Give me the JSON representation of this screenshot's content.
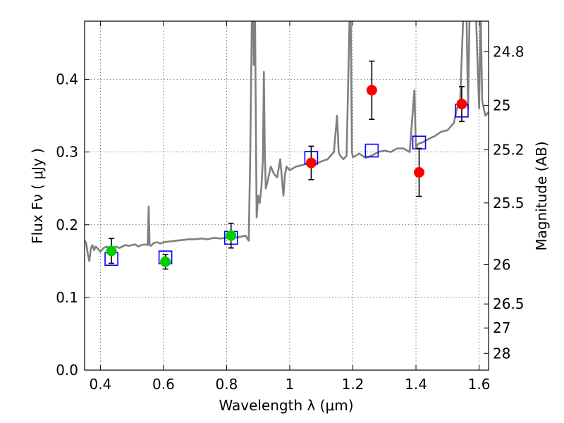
{
  "chart_data": {
    "type": "scatter",
    "xlabel": "Wavelength  λ (μm)",
    "ylabel": "Flux  Fν  ( μJy )",
    "y2label": "Magnitude (AB)",
    "xlim": [
      0.35,
      1.63
    ],
    "ylim": [
      0.0,
      0.48
    ],
    "grid": true,
    "x_ticks": [
      0.4,
      0.6,
      0.8,
      1.0,
      1.2,
      1.4,
      1.6
    ],
    "x_tick_labels": [
      "0.4",
      "0.6",
      "0.8",
      "1",
      "1.2",
      "1.4",
      "1.6"
    ],
    "y_ticks": [
      0.0,
      0.1,
      0.2,
      0.3,
      0.4
    ],
    "y_tick_labels": [
      "0.0",
      "0.1",
      "0.2",
      "0.3",
      "0.4"
    ],
    "y2_ticks": [
      {
        "label": "24.8",
        "flux": 0.438
      },
      {
        "label": "25",
        "flux": 0.364
      },
      {
        "label": "25.2",
        "flux": 0.303
      },
      {
        "label": "25.5",
        "flux": 0.23
      },
      {
        "label": "26",
        "flux": 0.145
      },
      {
        "label": "26.5",
        "flux": 0.091
      },
      {
        "label": "27",
        "flux": 0.058
      },
      {
        "label": "28",
        "flux": 0.023
      }
    ],
    "colors": {
      "template": "#808080",
      "model": "#0000ff",
      "obs_green": "#00cc00",
      "obs_red": "#ff0000",
      "errorbar": "#000000",
      "grid": "#555555"
    },
    "series": [
      {
        "name": "template_spectrum",
        "style": "line",
        "x": [
          0.35,
          0.355,
          0.36,
          0.365,
          0.37,
          0.375,
          0.38,
          0.385,
          0.39,
          0.4,
          0.41,
          0.42,
          0.43,
          0.44,
          0.45,
          0.46,
          0.47,
          0.48,
          0.49,
          0.5,
          0.51,
          0.52,
          0.53,
          0.54,
          0.55,
          0.553,
          0.556,
          0.56,
          0.57,
          0.58,
          0.59,
          0.6,
          0.62,
          0.64,
          0.66,
          0.68,
          0.7,
          0.72,
          0.74,
          0.76,
          0.78,
          0.8,
          0.82,
          0.84,
          0.86,
          0.87,
          0.875,
          0.88,
          0.884,
          0.886,
          0.888,
          0.89,
          0.895,
          0.9,
          0.905,
          0.91,
          0.915,
          0.918,
          0.921,
          0.924,
          0.93,
          0.94,
          0.95,
          0.96,
          0.97,
          0.98,
          0.985,
          0.99,
          1.0,
          1.02,
          1.04,
          1.06,
          1.08,
          1.1,
          1.12,
          1.14,
          1.15,
          1.155,
          1.16,
          1.17,
          1.18,
          1.19,
          1.193,
          1.197,
          1.2,
          1.21,
          1.22,
          1.24,
          1.26,
          1.28,
          1.3,
          1.32,
          1.34,
          1.36,
          1.38,
          1.395,
          1.4,
          1.405,
          1.41,
          1.42,
          1.44,
          1.46,
          1.48,
          1.5,
          1.52,
          1.53,
          1.54,
          1.55,
          1.56,
          1.565,
          1.57,
          1.58,
          1.59,
          1.6,
          1.605,
          1.61,
          1.62,
          1.63
        ],
        "y": [
          0.178,
          0.175,
          0.16,
          0.15,
          0.168,
          0.172,
          0.165,
          0.17,
          0.168,
          0.163,
          0.168,
          0.17,
          0.167,
          0.168,
          0.17,
          0.168,
          0.17,
          0.172,
          0.171,
          0.172,
          0.173,
          0.17,
          0.172,
          0.173,
          0.172,
          0.225,
          0.172,
          0.171,
          0.175,
          0.176,
          0.174,
          0.176,
          0.177,
          0.178,
          0.179,
          0.18,
          0.18,
          0.181,
          0.18,
          0.182,
          0.181,
          0.182,
          0.182,
          0.183,
          0.185,
          0.178,
          0.3,
          0.49,
          0.49,
          0.42,
          0.49,
          0.49,
          0.21,
          0.24,
          0.23,
          0.25,
          0.29,
          0.41,
          0.3,
          0.25,
          0.26,
          0.28,
          0.27,
          0.265,
          0.29,
          0.24,
          0.27,
          0.28,
          0.275,
          0.28,
          0.282,
          0.285,
          0.283,
          0.287,
          0.29,
          0.3,
          0.35,
          0.3,
          0.295,
          0.29,
          0.295,
          0.49,
          0.49,
          0.3,
          0.293,
          0.295,
          0.298,
          0.292,
          0.295,
          0.3,
          0.302,
          0.3,
          0.305,
          0.305,
          0.3,
          0.385,
          0.305,
          0.31,
          0.312,
          0.313,
          0.318,
          0.322,
          0.328,
          0.33,
          0.34,
          0.36,
          0.37,
          0.49,
          0.49,
          0.36,
          0.49,
          0.49,
          0.49,
          0.36,
          0.49,
          0.37,
          0.35,
          0.355
        ]
      },
      {
        "name": "model_photometry",
        "style": "open_square",
        "x": [
          0.435,
          0.606,
          0.814,
          1.068,
          1.26,
          1.41,
          1.545
        ],
        "y": [
          0.153,
          0.155,
          0.182,
          0.292,
          0.302,
          0.313,
          0.357
        ]
      },
      {
        "name": "observed_hst_optical",
        "style": "filled_circle_green",
        "x": [
          0.435,
          0.606,
          0.814
        ],
        "y": [
          0.164,
          0.149,
          0.185
        ],
        "yerr": [
          0.017,
          0.01,
          0.017
        ]
      },
      {
        "name": "observed_hst_nir",
        "style": "filled_circle_red",
        "x": [
          1.068,
          1.26,
          1.41,
          1.545
        ],
        "y": [
          0.285,
          0.385,
          0.272,
          0.366
        ],
        "yerr": [
          0.023,
          0.04,
          0.033,
          0.024
        ]
      }
    ]
  }
}
